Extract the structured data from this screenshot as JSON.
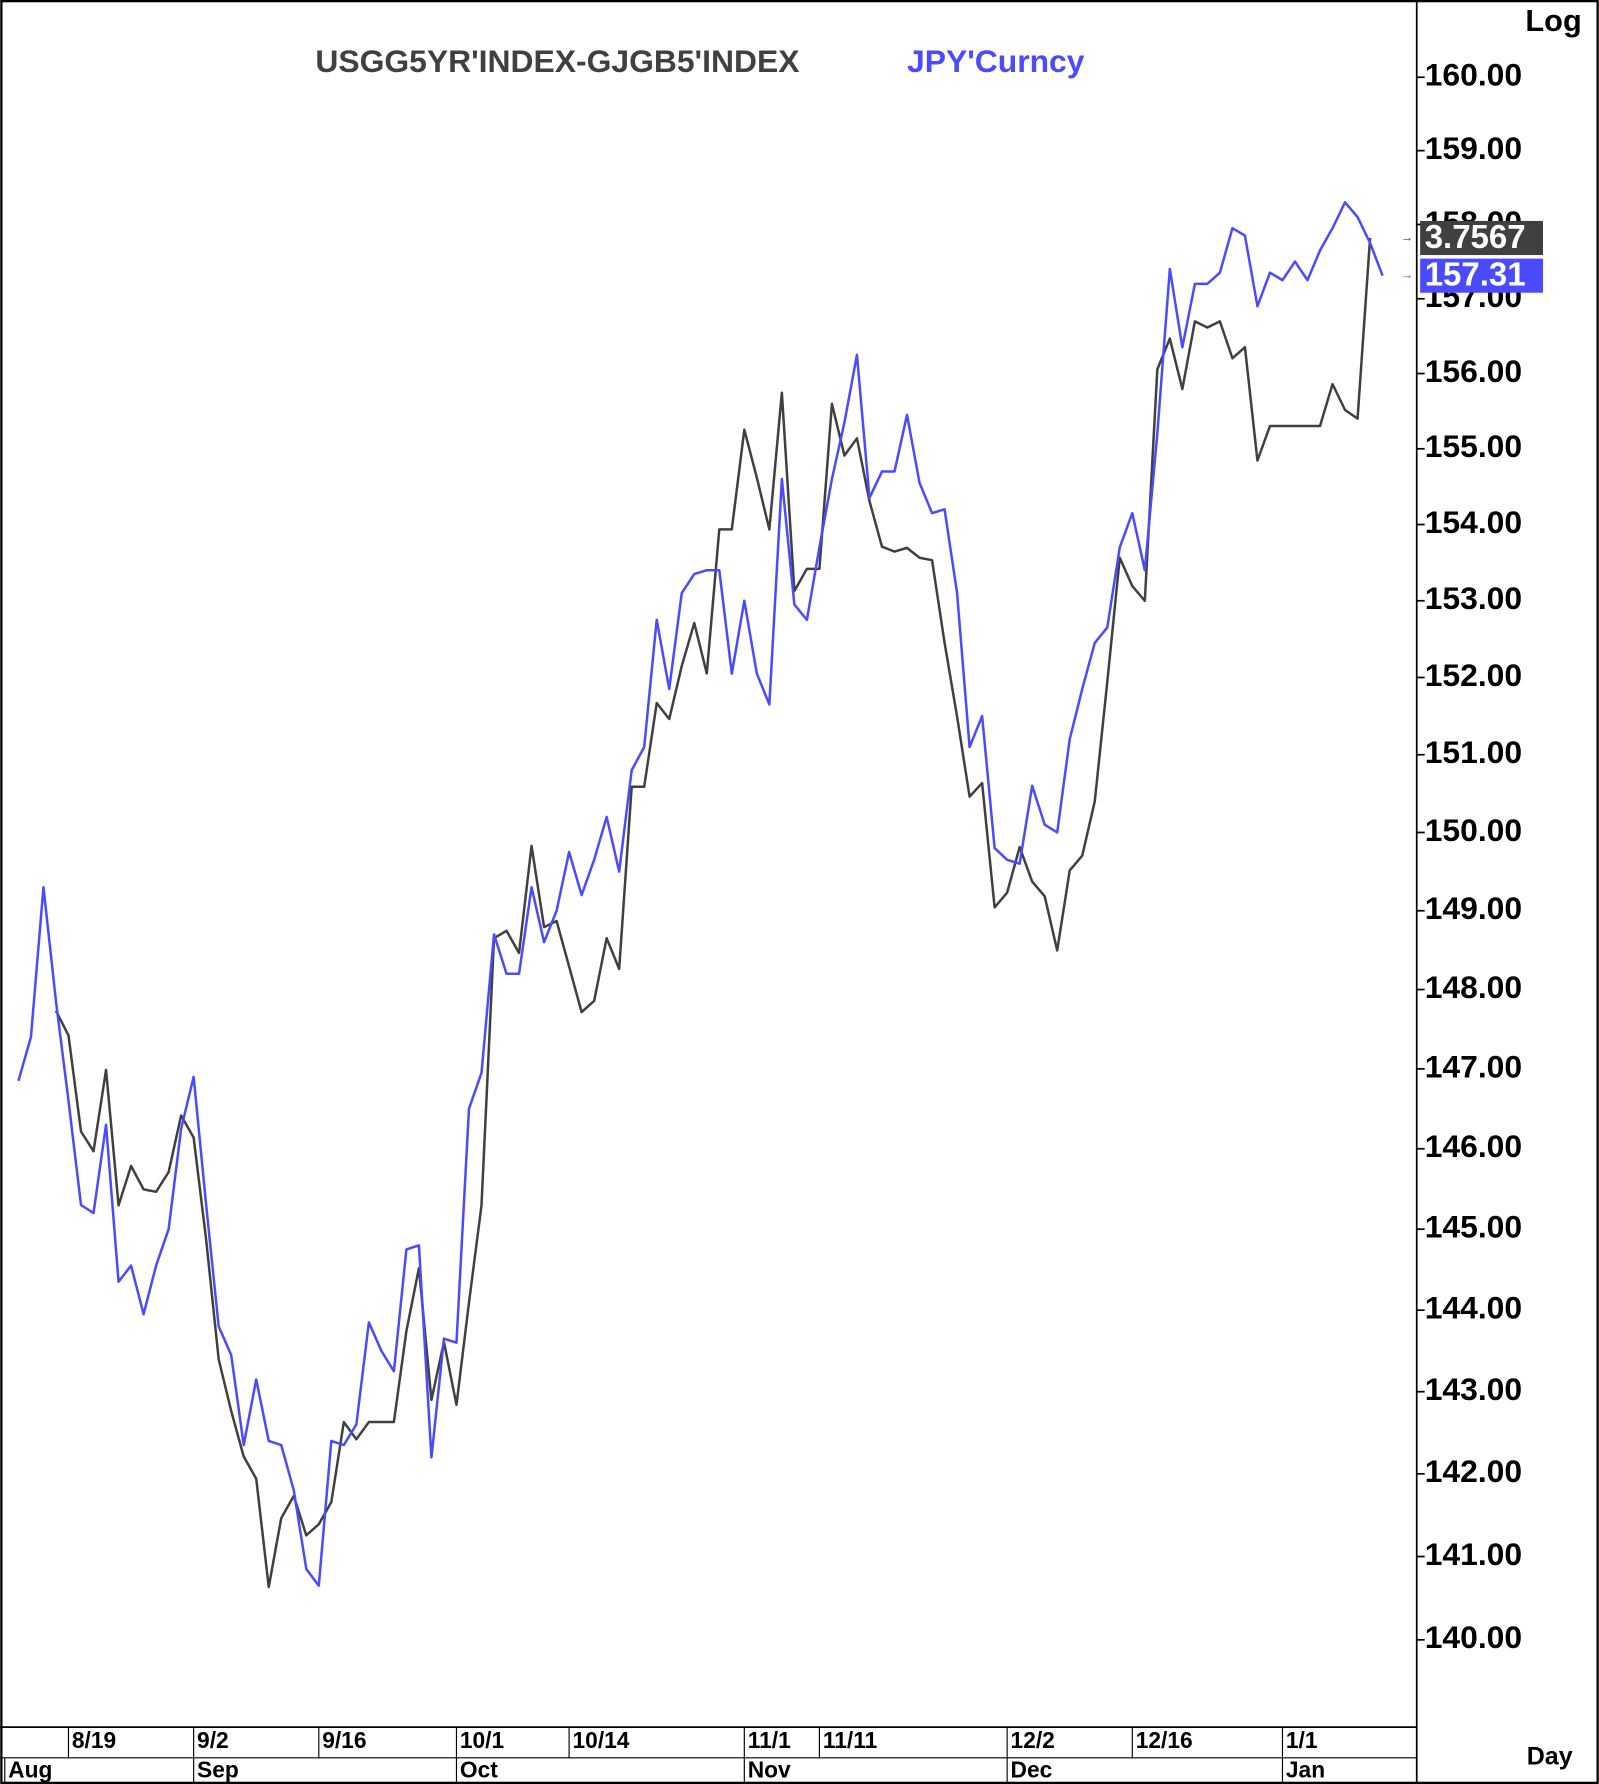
{
  "chart_data": {
    "type": "line",
    "log_scale": true,
    "scale_label": "Log",
    "period_label": "Day",
    "categories": [
      null,
      null,
      null,
      null,
      "8/19",
      null,
      null,
      null,
      null,
      null,
      null,
      null,
      null,
      null,
      "9/2",
      null,
      null,
      null,
      null,
      null,
      null,
      null,
      null,
      null,
      "9/16",
      null,
      null,
      null,
      null,
      null,
      null,
      null,
      null,
      null,
      null,
      "10/1",
      null,
      null,
      null,
      null,
      null,
      null,
      null,
      null,
      "10/14",
      null,
      null,
      null,
      null,
      null,
      null,
      null,
      null,
      null,
      null,
      null,
      null,
      null,
      "11/1",
      null,
      null,
      null,
      null,
      null,
      "11/11",
      null,
      null,
      null,
      null,
      null,
      null,
      null,
      null,
      null,
      null,
      null,
      null,
      null,
      null,
      "12/2",
      null,
      null,
      null,
      null,
      null,
      null,
      null,
      null,
      null,
      "12/16",
      null,
      null,
      null,
      null,
      null,
      null,
      null,
      null,
      null,
      null,
      null,
      "1/1",
      null,
      null,
      null,
      null,
      null,
      null,
      null,
      null
    ],
    "months": [
      {
        "label": "Aug",
        "index": 0
      },
      {
        "label": "Sep",
        "index": 14
      },
      {
        "label": "Oct",
        "index": 35
      },
      {
        "label": "Nov",
        "index": 58
      },
      {
        "label": "Dec",
        "index": 79
      },
      {
        "label": "Jan",
        "index": 101
      }
    ],
    "series": [
      {
        "name": "USGG5YR'INDEX-GJGB5'INDEX",
        "color": "#404040",
        "axis": "y2",
        "values": [
          null,
          null,
          null,
          3.129,
          3.109,
          3.031,
          3.015,
          3.081,
          2.971,
          3.003,
          2.984,
          2.982,
          2.998,
          3.044,
          3.026,
          2.943,
          2.846,
          2.804,
          2.767,
          2.749,
          2.661,
          2.717,
          2.735,
          2.703,
          2.712,
          2.73,
          2.795,
          2.781,
          2.795,
          2.795,
          2.795,
          2.869,
          2.92,
          2.813,
          2.86,
          2.809,
          2.892,
          2.971,
          3.188,
          3.194,
          3.176,
          3.263,
          3.197,
          3.202,
          3.165,
          3.128,
          3.137,
          3.188,
          3.163,
          3.311,
          3.311,
          3.379,
          3.366,
          3.409,
          3.444,
          3.403,
          3.52,
          3.52,
          3.601,
          3.562,
          3.52,
          3.631,
          3.47,
          3.488,
          3.488,
          3.622,
          3.58,
          3.594,
          3.543,
          3.506,
          3.502,
          3.505,
          3.497,
          3.495,
          3.428,
          3.368,
          3.303,
          3.314,
          3.213,
          3.225,
          3.262,
          3.234,
          3.222,
          3.178,
          3.243,
          3.255,
          3.299,
          3.396,
          3.497,
          3.474,
          3.462,
          3.65,
          3.675,
          3.634,
          3.689,
          3.684,
          3.689,
          3.659,
          3.668,
          3.576,
          3.604,
          3.604,
          3.604,
          3.604,
          3.604,
          3.638,
          3.617,
          3.61,
          3.7567,
          null
        ]
      },
      {
        "name": "JPY'Curncy",
        "color": "#4a4aff",
        "values": [
          146.85,
          147.4,
          149.3,
          147.85,
          146.6,
          145.3,
          145.2,
          146.3,
          144.35,
          144.55,
          143.95,
          144.55,
          145.0,
          146.25,
          146.9,
          145.3,
          143.8,
          143.45,
          142.35,
          143.15,
          142.4,
          142.35,
          141.8,
          140.85,
          140.65,
          142.4,
          142.35,
          142.6,
          143.85,
          143.5,
          143.25,
          144.75,
          144.8,
          142.2,
          143.65,
          143.6,
          146.5,
          146.95,
          148.7,
          148.2,
          148.2,
          149.3,
          148.6,
          149.0,
          149.75,
          149.2,
          149.65,
          150.2,
          149.5,
          150.8,
          151.1,
          152.75,
          151.85,
          153.1,
          153.35,
          153.4,
          153.4,
          152.05,
          153.0,
          152.05,
          151.65,
          154.6,
          152.95,
          152.75,
          153.7,
          154.6,
          155.35,
          156.25,
          154.35,
          154.7,
          154.7,
          155.45,
          154.55,
          154.15,
          154.2,
          153.1,
          151.1,
          151.5,
          149.8,
          149.65,
          149.6,
          150.6,
          150.1,
          150.0,
          151.2,
          151.85,
          152.45,
          152.65,
          153.7,
          154.15,
          153.4,
          155.2,
          157.4,
          156.35,
          157.2,
          157.2,
          157.35,
          157.95,
          157.85,
          156.9,
          157.35,
          157.25,
          157.5,
          157.25,
          157.65,
          157.95,
          158.3,
          158.1,
          157.75,
          157.31
        ]
      }
    ],
    "ylim": [
      139,
      161.06
    ],
    "y2lim": [
      2.55,
      3.95
    ],
    "yticks": [
      {
        "value": 140,
        "label": "140.00"
      },
      {
        "value": 141,
        "label": "141.00"
      },
      {
        "value": 142,
        "label": "142.00"
      },
      {
        "value": 143,
        "label": "143.00"
      },
      {
        "value": 144,
        "label": "144.00"
      },
      {
        "value": 145,
        "label": "145.00"
      },
      {
        "value": 146,
        "label": "146.00"
      },
      {
        "value": 147,
        "label": "147.00"
      },
      {
        "value": 148,
        "label": "148.00"
      },
      {
        "value": 149,
        "label": "149.00"
      },
      {
        "value": 150,
        "label": "150.00"
      },
      {
        "value": 151,
        "label": "151.00"
      },
      {
        "value": 152,
        "label": "152.00"
      },
      {
        "value": 153,
        "label": "153.00"
      },
      {
        "value": 154,
        "label": "154.00"
      },
      {
        "value": 155,
        "label": "155.00"
      },
      {
        "value": 156,
        "label": "156.00"
      },
      {
        "value": 157,
        "label": "157.00"
      },
      {
        "value": 158,
        "label": "158.00"
      },
      {
        "value": 159,
        "label": "159.00"
      },
      {
        "value": 160,
        "label": "160.00"
      }
    ],
    "grid": false
  }
}
